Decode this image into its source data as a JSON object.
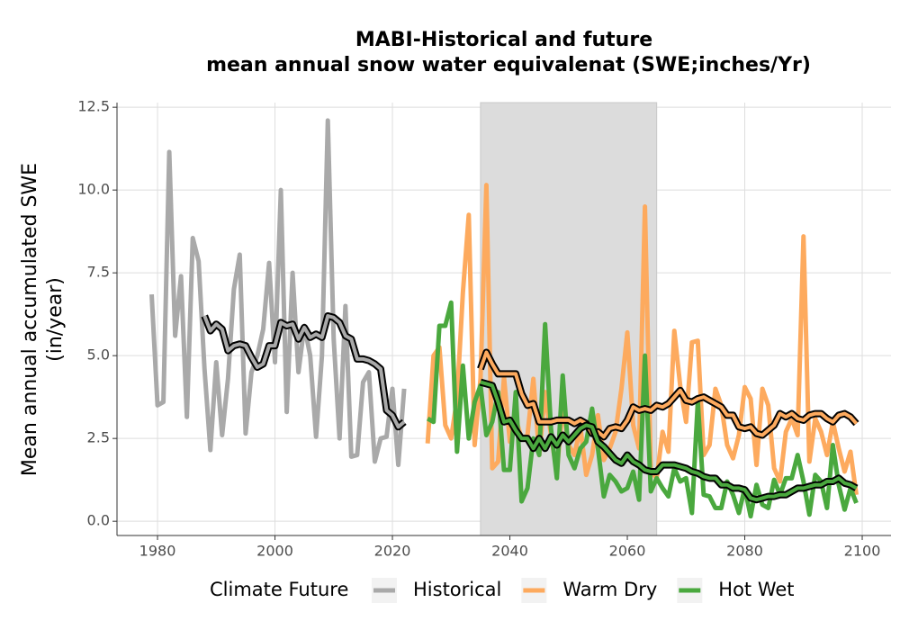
{
  "chart_data": {
    "type": "line",
    "title": [
      "MABI-Historical and future",
      "mean annual snow water equivalenat (SWE;inches/Yr)"
    ],
    "y_label": [
      "Mean annual accumulated SWE",
      "(in/year)"
    ],
    "legend_title": "Climate Future",
    "legend": "bottom",
    "grid": true,
    "xlim": [
      1973.1,
      2104.9
    ],
    "ylim": [
      -0.43,
      12.64
    ],
    "xticks": [
      1980,
      2000,
      2020,
      2040,
      2060,
      2080,
      2100
    ],
    "yticks": [
      {
        "value": 0,
        "label": "0.0"
      },
      {
        "value": 2.5,
        "label": "2.5"
      },
      {
        "value": 5,
        "label": "5.0"
      },
      {
        "value": 7.5,
        "label": "7.5"
      },
      {
        "value": 10,
        "label": "10.0"
      },
      {
        "value": 12.5,
        "label": "12.5"
      }
    ],
    "shaded_x": [
      2035,
      2065
    ],
    "shade_color": "#dcdcdc",
    "series": [
      {
        "name": "Historical",
        "color": "#a9a9a9",
        "x": [
          1979,
          1980,
          1981,
          1982,
          1983,
          1984,
          1985,
          1986,
          1987,
          1988,
          1989,
          1990,
          1991,
          1992,
          1993,
          1994,
          1995,
          1996,
          1997,
          1998,
          1999,
          2000,
          2001,
          2002,
          2003,
          2004,
          2005,
          2006,
          2007,
          2008,
          2009,
          2010,
          2011,
          2012,
          2013,
          2014,
          2015,
          2016,
          2017,
          2018,
          2019,
          2020,
          2021,
          2022
        ],
        "values": [
          6.85,
          3.5,
          3.6,
          11.15,
          5.6,
          7.4,
          3.15,
          8.55,
          7.85,
          4.6,
          2.15,
          4.8,
          2.6,
          4.3,
          7.0,
          8.05,
          2.65,
          4.5,
          5.0,
          5.8,
          7.8,
          4.8,
          10.0,
          3.3,
          7.5,
          4.5,
          5.9,
          5.0,
          2.55,
          5.0,
          12.1,
          5.5,
          2.5,
          6.5,
          1.95,
          2.0,
          4.2,
          4.5,
          1.8,
          2.5,
          2.55,
          4.0,
          1.7,
          4.0
        ],
        "smooth_x": [
          1988,
          1989,
          1990,
          1991,
          1992,
          1993,
          1994,
          1995,
          1996,
          1997,
          1998,
          1999,
          2000,
          2001,
          2002,
          2003,
          2004,
          2005,
          2006,
          2007,
          2008,
          2009,
          2010,
          2011,
          2012,
          2013,
          2014,
          2015,
          2016,
          2017,
          2018,
          2019,
          2020,
          2021,
          2022
        ],
        "smooth_values": [
          6.2,
          5.75,
          5.95,
          5.8,
          5.15,
          5.3,
          5.35,
          5.3,
          4.95,
          4.65,
          4.75,
          5.3,
          5.3,
          6.0,
          5.9,
          5.95,
          5.5,
          5.85,
          5.55,
          5.65,
          5.55,
          6.2,
          6.15,
          6.0,
          5.6,
          5.5,
          4.9,
          4.9,
          4.85,
          4.75,
          4.6,
          3.35,
          3.2,
          2.85,
          3.0
        ]
      },
      {
        "name": "Warm Dry",
        "color": "#fdaa5e",
        "x": [
          2026,
          2027,
          2028,
          2029,
          2030,
          2031,
          2032,
          2033,
          2034,
          2035,
          2036,
          2037,
          2038,
          2039,
          2040,
          2041,
          2042,
          2043,
          2044,
          2045,
          2046,
          2047,
          2048,
          2049,
          2050,
          2051,
          2052,
          2053,
          2054,
          2055,
          2056,
          2057,
          2058,
          2059,
          2060,
          2061,
          2062,
          2063,
          2064,
          2065,
          2066,
          2067,
          2068,
          2069,
          2070,
          2071,
          2072,
          2073,
          2074,
          2075,
          2076,
          2077,
          2078,
          2079,
          2080,
          2081,
          2082,
          2083,
          2084,
          2085,
          2086,
          2087,
          2088,
          2089,
          2090,
          2091,
          2092,
          2093,
          2094,
          2095,
          2096,
          2097,
          2098,
          2099
        ],
        "values": [
          2.35,
          5.0,
          5.25,
          2.9,
          2.5,
          3.7,
          6.9,
          9.25,
          2.3,
          4.3,
          10.15,
          1.6,
          1.8,
          4.35,
          2.4,
          3.1,
          2.5,
          2.6,
          4.3,
          2.0,
          3.9,
          2.6,
          1.5,
          3.5,
          2.3,
          2.0,
          2.85,
          1.4,
          2.0,
          3.2,
          1.85,
          2.2,
          2.7,
          4.0,
          5.7,
          2.9,
          2.2,
          9.5,
          1.5,
          1.3,
          2.7,
          2.1,
          5.75,
          4.1,
          3.0,
          5.4,
          5.45,
          2.0,
          2.3,
          4.0,
          3.5,
          2.3,
          1.9,
          2.6,
          4.05,
          3.7,
          1.7,
          4.0,
          3.5,
          1.6,
          1.2,
          2.7,
          3.1,
          2.6,
          8.6,
          1.8,
          3.1,
          2.7,
          2.0,
          3.0,
          2.2,
          1.5,
          2.1,
          0.8
        ],
        "smooth_x": [
          2035,
          2036,
          2037,
          2038,
          2039,
          2040,
          2041,
          2042,
          2043,
          2044,
          2045,
          2046,
          2047,
          2048,
          2049,
          2050,
          2051,
          2052,
          2053,
          2054,
          2055,
          2056,
          2057,
          2058,
          2059,
          2060,
          2061,
          2062,
          2063,
          2064,
          2065,
          2066,
          2067,
          2068,
          2069,
          2070,
          2071,
          2072,
          2073,
          2074,
          2075,
          2076,
          2077,
          2078,
          2079,
          2080,
          2081,
          2082,
          2083,
          2084,
          2085,
          2086,
          2087,
          2088,
          2089,
          2090,
          2091,
          2092,
          2093,
          2094,
          2095,
          2096,
          2097,
          2098,
          2099
        ],
        "smooth_values": [
          4.6,
          5.1,
          4.75,
          4.45,
          4.45,
          4.45,
          4.45,
          3.85,
          3.5,
          3.55,
          3.0,
          3.0,
          3.0,
          3.05,
          3.05,
          3.05,
          2.95,
          3.05,
          2.95,
          2.65,
          2.7,
          2.55,
          2.8,
          2.85,
          2.8,
          3.05,
          3.45,
          3.35,
          3.4,
          3.35,
          3.5,
          3.45,
          3.55,
          3.75,
          3.95,
          3.65,
          3.6,
          3.7,
          3.75,
          3.65,
          3.55,
          3.45,
          3.2,
          3.2,
          2.85,
          2.8,
          2.85,
          2.65,
          2.6,
          2.75,
          2.9,
          3.25,
          3.15,
          3.25,
          3.1,
          3.05,
          3.2,
          3.25,
          3.25,
          3.1,
          3.0,
          3.2,
          3.25,
          3.15,
          2.95
        ]
      },
      {
        "name": "Hot Wet",
        "color": "#4aa83e",
        "x": [
          2026,
          2027,
          2028,
          2029,
          2030,
          2031,
          2032,
          2033,
          2034,
          2035,
          2036,
          2037,
          2038,
          2039,
          2040,
          2041,
          2042,
          2043,
          2044,
          2045,
          2046,
          2047,
          2048,
          2049,
          2050,
          2051,
          2052,
          2053,
          2054,
          2055,
          2056,
          2057,
          2058,
          2059,
          2060,
          2061,
          2062,
          2063,
          2064,
          2065,
          2066,
          2067,
          2068,
          2069,
          2070,
          2071,
          2072,
          2073,
          2074,
          2075,
          2076,
          2077,
          2078,
          2079,
          2080,
          2081,
          2082,
          2083,
          2084,
          2085,
          2086,
          2087,
          2088,
          2089,
          2090,
          2091,
          2092,
          2093,
          2094,
          2095,
          2096,
          2097,
          2098,
          2099
        ],
        "values": [
          3.1,
          3.0,
          5.9,
          5.9,
          6.6,
          2.1,
          4.7,
          2.5,
          3.6,
          4.1,
          2.6,
          3.0,
          3.9,
          1.55,
          1.55,
          3.9,
          0.6,
          1.0,
          2.5,
          2.0,
          5.95,
          2.8,
          1.3,
          4.4,
          2.0,
          1.6,
          2.2,
          2.4,
          3.4,
          2.2,
          0.75,
          1.4,
          1.2,
          0.9,
          1.0,
          1.5,
          0.65,
          5.0,
          0.9,
          1.3,
          1.0,
          0.75,
          1.6,
          1.2,
          1.3,
          0.25,
          3.6,
          0.8,
          0.75,
          0.4,
          0.4,
          1.2,
          0.8,
          0.25,
          1.0,
          0.15,
          1.1,
          0.5,
          0.4,
          1.25,
          0.8,
          1.3,
          1.3,
          2.0,
          1.2,
          0.2,
          1.4,
          1.2,
          0.4,
          2.3,
          1.1,
          0.35,
          1.0,
          0.55
        ],
        "smooth_x": [
          2035,
          2036,
          2037,
          2038,
          2039,
          2040,
          2041,
          2042,
          2043,
          2044,
          2045,
          2046,
          2047,
          2048,
          2049,
          2050,
          2051,
          2052,
          2053,
          2054,
          2055,
          2056,
          2057,
          2058,
          2059,
          2060,
          2061,
          2062,
          2063,
          2064,
          2065,
          2066,
          2067,
          2068,
          2069,
          2070,
          2071,
          2072,
          2073,
          2074,
          2075,
          2076,
          2077,
          2078,
          2079,
          2080,
          2081,
          2082,
          2083,
          2084,
          2085,
          2086,
          2087,
          2088,
          2089,
          2090,
          2091,
          2092,
          2093,
          2094,
          2095,
          2096,
          2097,
          2098,
          2099
        ],
        "smooth_values": [
          4.2,
          4.15,
          4.1,
          3.6,
          3.0,
          3.05,
          2.75,
          2.5,
          2.5,
          2.2,
          2.5,
          2.2,
          2.55,
          2.3,
          2.6,
          2.4,
          2.6,
          2.8,
          2.9,
          2.85,
          2.4,
          2.25,
          2.05,
          1.85,
          1.75,
          2.0,
          1.8,
          1.7,
          1.55,
          1.5,
          1.5,
          1.7,
          1.7,
          1.7,
          1.65,
          1.6,
          1.5,
          1.45,
          1.35,
          1.3,
          1.3,
          1.1,
          1.1,
          1.0,
          1.0,
          0.95,
          0.7,
          0.65,
          0.7,
          0.75,
          0.75,
          0.8,
          0.8,
          0.9,
          1.0,
          1.0,
          1.05,
          1.1,
          1.1,
          1.2,
          1.2,
          1.3,
          1.15,
          1.1,
          1.0
        ]
      }
    ]
  }
}
